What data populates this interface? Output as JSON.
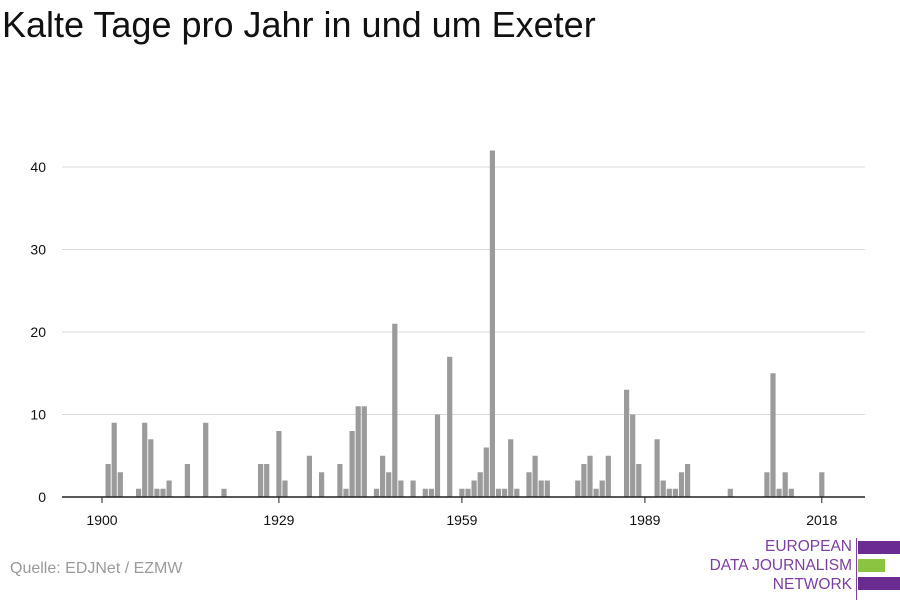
{
  "title": "Kalte Tage pro Jahr in und um Exeter",
  "source": "Quelle: EDJNet / EZMW",
  "logo": {
    "line1": "EUROPEAN",
    "line2": "DATA JOURNALISM",
    "line3": "NETWORK",
    "colors": {
      "purple": "#6a2c91",
      "green": "#8bc53f"
    }
  },
  "colors": {
    "bars": "#9b9b9b",
    "grid": "#d9d9d9",
    "axis": "#222222"
  },
  "chart_data": {
    "type": "bar",
    "x": [
      1900,
      1901,
      1902,
      1903,
      1904,
      1905,
      1906,
      1907,
      1908,
      1909,
      1910,
      1911,
      1912,
      1913,
      1914,
      1915,
      1916,
      1917,
      1918,
      1919,
      1920,
      1921,
      1922,
      1923,
      1924,
      1925,
      1926,
      1927,
      1928,
      1929,
      1930,
      1931,
      1932,
      1933,
      1934,
      1935,
      1936,
      1937,
      1938,
      1939,
      1940,
      1941,
      1942,
      1943,
      1944,
      1945,
      1946,
      1947,
      1948,
      1949,
      1950,
      1951,
      1952,
      1953,
      1954,
      1955,
      1956,
      1957,
      1958,
      1959,
      1960,
      1961,
      1962,
      1963,
      1964,
      1965,
      1966,
      1967,
      1968,
      1969,
      1970,
      1971,
      1972,
      1973,
      1974,
      1975,
      1976,
      1977,
      1978,
      1979,
      1980,
      1981,
      1982,
      1983,
      1984,
      1985,
      1986,
      1987,
      1988,
      1989,
      1990,
      1991,
      1992,
      1993,
      1994,
      1995,
      1996,
      1997,
      1998,
      1999,
      2000,
      2001,
      2002,
      2003,
      2004,
      2005,
      2006,
      2007,
      2008,
      2009,
      2010,
      2011,
      2012,
      2013,
      2014,
      2015,
      2016,
      2017,
      2018
    ],
    "values": [
      0,
      4,
      9,
      3,
      0,
      0,
      1,
      9,
      7,
      1,
      1,
      2,
      0,
      0,
      4,
      0,
      0,
      9,
      0,
      0,
      1,
      0,
      0,
      0,
      0,
      0,
      4,
      4,
      0,
      8,
      2,
      0,
      0,
      0,
      5,
      0,
      3,
      0,
      0,
      4,
      1,
      8,
      11,
      11,
      0,
      1,
      5,
      3,
      21,
      2,
      0,
      2,
      0,
      1,
      1,
      10,
      0,
      17,
      0,
      1,
      1,
      2,
      3,
      6,
      42,
      1,
      1,
      7,
      1,
      0,
      3,
      5,
      2,
      2,
      0,
      0,
      0,
      0,
      2,
      4,
      5,
      1,
      2,
      5,
      0,
      0,
      13,
      10,
      4,
      0,
      0,
      7,
      2,
      1,
      1,
      3,
      4,
      0,
      0,
      0,
      0,
      0,
      0,
      1,
      0,
      0,
      0,
      0,
      0,
      3,
      15,
      1,
      3,
      1,
      0,
      0,
      0,
      0,
      3
    ],
    "xticks": [
      1900,
      1929,
      1959,
      1989,
      2018
    ],
    "yticks": [
      0,
      10,
      20,
      30,
      40
    ],
    "xlim": [
      1900,
      2018
    ],
    "ylim": [
      0,
      44
    ],
    "grid": true,
    "xlabel": "",
    "ylabel": ""
  }
}
